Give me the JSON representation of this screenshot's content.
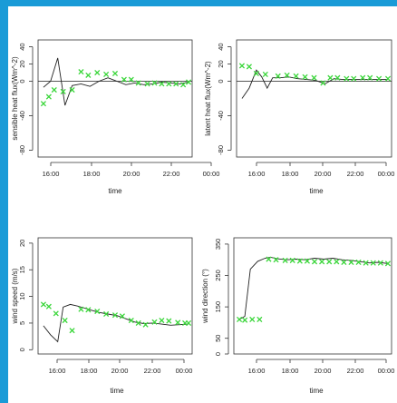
{
  "colors": {
    "frame": "#1a9bd7",
    "points": "#3ad63a",
    "line": "#222222",
    "axis": "#333333"
  },
  "chart_data": [
    {
      "type": "line",
      "xlabel": "time",
      "ylabel": "sensible heat flux(Wm^-2)",
      "xticks": [
        "16:00",
        "18:00",
        "20:00",
        "22:00",
        "00:00"
      ],
      "xlim": [
        15.6,
        24.2
      ],
      "ylim": [
        -88,
        48
      ],
      "yticks": [
        -80,
        -40,
        0,
        20,
        40
      ],
      "hline": 0,
      "series": [
        {
          "style": "line",
          "x": [
            15.9,
            16.3,
            16.7,
            17.1,
            17.5,
            18.0,
            18.5,
            19.0,
            19.5,
            20.0,
            20.5,
            21.0,
            21.5,
            22.0,
            22.5,
            23.0,
            23.5,
            24.0
          ],
          "y": [
            -7,
            0,
            27,
            -28,
            -5,
            -3,
            -6,
            0,
            4,
            0,
            -4,
            -2,
            -4,
            -3,
            -1,
            -2,
            -3,
            -1
          ]
        },
        {
          "style": "points",
          "x": [
            15.9,
            16.2,
            16.5,
            17.0,
            17.5,
            18.0,
            18.4,
            18.9,
            19.4,
            19.9,
            20.4,
            20.8,
            21.2,
            21.7,
            22.1,
            22.5,
            22.9,
            23.3,
            23.7,
            24.0
          ],
          "y": [
            -26,
            -18,
            -10,
            -12,
            -10,
            11,
            7,
            10,
            8,
            9,
            2,
            2,
            -2,
            -3,
            -2,
            -3,
            -3,
            -3,
            -4,
            -1
          ]
        }
      ]
    },
    {
      "type": "line",
      "xlabel": "time",
      "ylabel": "latent heat flux(Wm^-2)",
      "xticks": [
        "16:00",
        "18:00",
        "20:00",
        "22:00",
        "00:00"
      ],
      "xlim": [
        15.6,
        24.2
      ],
      "ylim": [
        -88,
        48
      ],
      "yticks": [
        -80,
        -40,
        0,
        20,
        40
      ],
      "hline": 0,
      "series": [
        {
          "style": "line",
          "x": [
            15.9,
            16.3,
            16.7,
            17.0,
            17.3,
            17.6,
            18.0,
            18.5,
            19.0,
            19.5,
            20.0,
            20.5,
            21.0,
            21.5,
            22.0,
            22.5,
            23.0,
            23.5,
            24.0
          ],
          "y": [
            -20,
            -8,
            13,
            5,
            -8,
            4,
            4,
            5,
            3,
            2,
            1,
            -3,
            3,
            2,
            2,
            2,
            2,
            2,
            2
          ]
        },
        {
          "style": "points",
          "x": [
            15.9,
            16.3,
            16.7,
            17.2,
            17.9,
            18.4,
            18.9,
            19.4,
            19.9,
            20.4,
            20.8,
            21.2,
            21.7,
            22.1,
            22.6,
            23.0,
            23.5,
            24.0
          ],
          "y": [
            18,
            17,
            9,
            8,
            6,
            7,
            6,
            5,
            4,
            -2,
            4,
            4,
            3,
            3,
            4,
            4,
            3,
            3
          ]
        }
      ]
    },
    {
      "type": "line",
      "xlabel": "time",
      "ylabel": "wind speed (m/s)",
      "xticks": [
        "16:00",
        "18:00",
        "20:00",
        "22:00",
        "00:00"
      ],
      "xlim": [
        15.6,
        24.2
      ],
      "ylim": [
        -0.8,
        21
      ],
      "yticks": [
        0,
        5,
        10,
        15,
        20
      ],
      "series": [
        {
          "style": "line",
          "x": [
            15.9,
            16.3,
            16.7,
            17.0,
            17.4,
            17.8,
            18.2,
            18.6,
            19.0,
            19.5,
            20.0,
            20.5,
            21.0,
            21.5,
            22.0,
            22.5,
            23.0,
            23.5,
            24.0
          ],
          "y": [
            4.5,
            2.8,
            1.5,
            8.0,
            8.5,
            8.2,
            7.8,
            7.4,
            7.0,
            6.7,
            6.4,
            5.8,
            5.2,
            4.9,
            5.0,
            4.8,
            4.6,
            4.7,
            4.8
          ]
        },
        {
          "style": "points",
          "x": [
            15.9,
            16.2,
            16.6,
            17.1,
            17.5,
            18.0,
            18.4,
            18.9,
            19.4,
            19.9,
            20.3,
            20.8,
            21.2,
            21.6,
            22.1,
            22.5,
            22.9,
            23.4,
            23.8,
            24.0
          ],
          "y": [
            8.5,
            8.1,
            6.8,
            5.5,
            3.6,
            7.6,
            7.5,
            7.2,
            6.7,
            6.5,
            6.3,
            5.5,
            5.0,
            4.7,
            5.2,
            5.5,
            5.4,
            5.1,
            5.0,
            5.0
          ]
        }
      ]
    },
    {
      "type": "line",
      "xlabel": "time",
      "ylabel": "wind direction (°)",
      "xticks": [
        "16:00",
        "18:00",
        "20:00",
        "22:00",
        "00:00"
      ],
      "xlim": [
        15.6,
        24.2
      ],
      "ylim": [
        0,
        370
      ],
      "yticks": [
        0,
        50,
        150,
        250,
        350
      ],
      "series": [
        {
          "style": "line",
          "x": [
            15.9,
            16.2,
            16.5,
            16.9,
            17.3,
            17.6,
            18.0,
            18.5,
            19.0,
            19.5,
            20.0,
            20.5,
            21.0,
            21.5,
            22.0,
            22.5,
            23.0,
            23.5,
            24.0
          ],
          "y": [
            110,
            120,
            270,
            295,
            305,
            308,
            303,
            300,
            302,
            300,
            305,
            302,
            305,
            300,
            298,
            294,
            290,
            292,
            288
          ]
        },
        {
          "style": "points",
          "x": [
            15.9,
            16.2,
            16.6,
            17.0,
            17.5,
            17.9,
            18.4,
            18.8,
            19.2,
            19.6,
            20.0,
            20.4,
            20.8,
            21.2,
            21.6,
            22.0,
            22.4,
            22.8,
            23.2,
            23.6,
            24.0
          ],
          "y": [
            110,
            108,
            110,
            110,
            302,
            300,
            298,
            298,
            296,
            296,
            294,
            294,
            294,
            294,
            292,
            292,
            292,
            290,
            290,
            290,
            288
          ]
        }
      ]
    }
  ]
}
